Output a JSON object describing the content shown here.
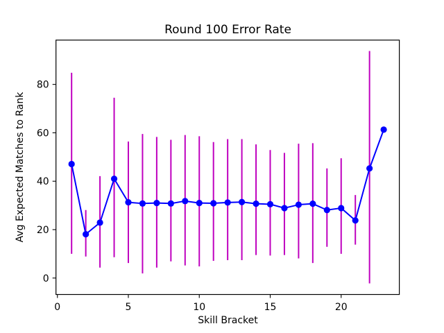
{
  "chart_data": {
    "type": "line",
    "title": "Round 100 Error Rate",
    "xlabel": "Skill Bracket",
    "ylabel": "Avg Expected Matches to Rank",
    "x": [
      1,
      2,
      3,
      4,
      5,
      6,
      7,
      8,
      9,
      10,
      11,
      12,
      13,
      14,
      15,
      16,
      17,
      18,
      19,
      20,
      21,
      22,
      23
    ],
    "y": [
      47.1,
      18.1,
      22.9,
      41.0,
      31.3,
      30.8,
      31.0,
      30.8,
      31.8,
      31.0,
      30.9,
      31.2,
      31.4,
      30.7,
      30.5,
      28.9,
      30.3,
      30.7,
      28.1,
      28.9,
      23.8,
      45.3,
      61.3
    ],
    "error_top": [
      84.8,
      28.1,
      42.1,
      74.5,
      56.4,
      59.5,
      58.3,
      57.1,
      59.1,
      58.6,
      56.2,
      57.4,
      57.4,
      55.2,
      52.9,
      51.7,
      55.5,
      55.7,
      45.3,
      49.5,
      34.3,
      93.8,
      null
    ],
    "error_bottom": [
      10.0,
      8.9,
      4.3,
      8.6,
      6.2,
      1.9,
      4.3,
      6.9,
      5.2,
      4.8,
      7.1,
      7.4,
      7.4,
      9.5,
      9.3,
      9.5,
      8.1,
      6.2,
      12.9,
      10.0,
      13.8,
      -2.2,
      null
    ],
    "xticks": [
      0,
      5,
      10,
      15,
      20
    ],
    "yticks": [
      0,
      20,
      40,
      60,
      80
    ],
    "xlim": [
      -0.1,
      24.1
    ],
    "ylim": [
      -6.8,
      98.3
    ],
    "grid": false,
    "legend": null,
    "line_color": "#0000ff",
    "error_color": "#bf00bf",
    "axis_color": "#000000",
    "marker": "circle"
  }
}
